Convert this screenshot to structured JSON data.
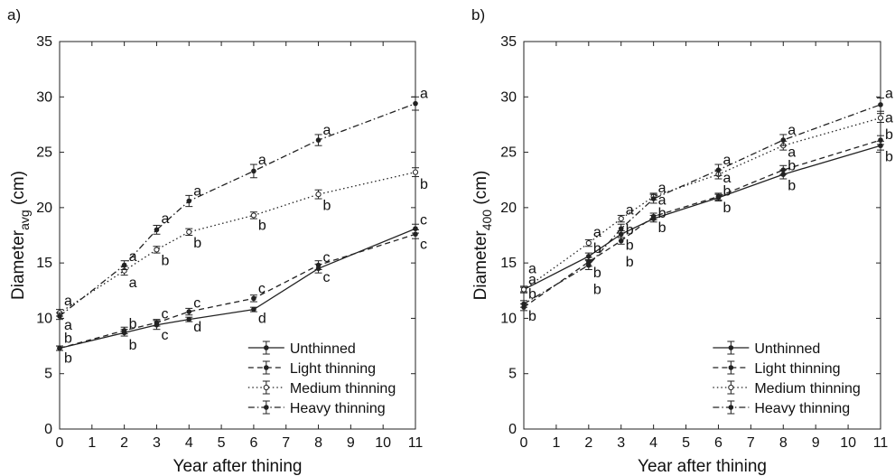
{
  "chart_data": [
    {
      "type": "line",
      "panel_label": "a)",
      "xlabel": "Year after thining",
      "ylabel_main": "Diameter",
      "ylabel_sub": "avg",
      "ylabel_unit": " (cm)",
      "x": [
        0,
        2,
        3,
        4,
        6,
        8,
        11
      ],
      "xlim": [
        0,
        11
      ],
      "ylim": [
        0,
        35
      ],
      "xticks": [
        0,
        1,
        2,
        3,
        4,
        5,
        6,
        7,
        8,
        9,
        10,
        11
      ],
      "yticks": [
        0,
        5,
        10,
        15,
        20,
        25,
        30,
        35
      ],
      "grid": false,
      "legend_position": "bottom-right",
      "series": [
        {
          "name": "Unthinned",
          "dash": "solid",
          "marker": "filled-dot",
          "values": [
            7.3,
            8.7,
            9.4,
            9.9,
            10.8,
            14.5,
            18.1
          ],
          "errors": [
            0.2,
            0.3,
            0.4,
            0.2,
            0.2,
            0.4,
            0.4
          ]
        },
        {
          "name": "Light thinning",
          "dash": "dashed",
          "marker": "filled-dot",
          "values": [
            7.3,
            8.9,
            9.6,
            10.6,
            11.8,
            14.8,
            17.6
          ],
          "errors": [
            0.2,
            0.3,
            0.3,
            0.3,
            0.3,
            0.4,
            0.4
          ]
        },
        {
          "name": "Medium thinning",
          "dash": "dotted",
          "marker": "open-circle",
          "values": [
            10.5,
            14.3,
            16.2,
            17.8,
            19.3,
            21.2,
            23.2
          ],
          "errors": [
            0.3,
            0.4,
            0.3,
            0.3,
            0.3,
            0.4,
            0.4
          ]
        },
        {
          "name": "Heavy thinning",
          "dash": "dash-dot",
          "marker": "filled-dot",
          "values": [
            10.2,
            14.8,
            18.0,
            20.6,
            23.3,
            26.1,
            29.4
          ],
          "errors": [
            0.3,
            0.4,
            0.4,
            0.5,
            0.6,
            0.5,
            0.6
          ]
        }
      ],
      "annotations": [
        {
          "x": 0,
          "y": 11.6,
          "text": "a"
        },
        {
          "x": 0,
          "y": 9.4,
          "text": "a"
        },
        {
          "x": 0,
          "y": 8.2,
          "text": "b"
        },
        {
          "x": 0,
          "y": 6.4,
          "text": "b"
        },
        {
          "x": 2,
          "y": 15.6,
          "text": "a"
        },
        {
          "x": 2,
          "y": 13.2,
          "text": "a"
        },
        {
          "x": 2,
          "y": 9.5,
          "text": "b"
        },
        {
          "x": 2,
          "y": 7.6,
          "text": "b"
        },
        {
          "x": 3,
          "y": 19.0,
          "text": "a"
        },
        {
          "x": 3,
          "y": 15.2,
          "text": "b"
        },
        {
          "x": 3,
          "y": 10.4,
          "text": "c"
        },
        {
          "x": 3,
          "y": 8.5,
          "text": "c"
        },
        {
          "x": 4,
          "y": 21.5,
          "text": "a"
        },
        {
          "x": 4,
          "y": 16.8,
          "text": "b"
        },
        {
          "x": 4,
          "y": 11.4,
          "text": "c"
        },
        {
          "x": 4,
          "y": 9.2,
          "text": "d"
        },
        {
          "x": 6,
          "y": 24.3,
          "text": "a"
        },
        {
          "x": 6,
          "y": 18.4,
          "text": "b"
        },
        {
          "x": 6,
          "y": 12.7,
          "text": "c"
        },
        {
          "x": 6,
          "y": 10.0,
          "text": "d"
        },
        {
          "x": 8,
          "y": 27.0,
          "text": "a"
        },
        {
          "x": 8,
          "y": 20.2,
          "text": "b"
        },
        {
          "x": 8,
          "y": 15.5,
          "text": "c"
        },
        {
          "x": 8,
          "y": 13.7,
          "text": "c"
        },
        {
          "x": 11,
          "y": 30.3,
          "text": "a"
        },
        {
          "x": 11,
          "y": 22.1,
          "text": "b"
        },
        {
          "x": 11,
          "y": 18.9,
          "text": "c"
        },
        {
          "x": 11,
          "y": 16.7,
          "text": "c"
        }
      ]
    },
    {
      "type": "line",
      "panel_label": "b)",
      "xlabel": "Year after thining",
      "ylabel_main": "Diameter",
      "ylabel_sub": "400",
      "ylabel_unit": " (cm)",
      "x": [
        0,
        2,
        3,
        4,
        6,
        8,
        11
      ],
      "xlim": [
        0,
        11
      ],
      "ylim": [
        0,
        35
      ],
      "xticks": [
        0,
        1,
        2,
        3,
        4,
        5,
        6,
        7,
        8,
        9,
        10,
        11
      ],
      "yticks": [
        0,
        5,
        10,
        15,
        20,
        25,
        30,
        35
      ],
      "grid": false,
      "legend_position": "bottom-right",
      "series": [
        {
          "name": "Unthinned",
          "dash": "solid",
          "marker": "filled-dot",
          "values": [
            12.6,
            15.6,
            17.6,
            19.0,
            20.9,
            23.0,
            25.6
          ],
          "errors": [
            0.2,
            0.3,
            0.3,
            0.3,
            0.3,
            0.4,
            0.4
          ]
        },
        {
          "name": "Light thinning",
          "dash": "dashed",
          "marker": "filled-dot",
          "values": [
            11.0,
            15.1,
            17.0,
            19.2,
            21.0,
            23.4,
            26.1
          ],
          "errors": [
            0.3,
            0.4,
            0.3,
            0.3,
            0.3,
            0.4,
            0.4
          ]
        },
        {
          "name": "Medium thinning",
          "dash": "dotted",
          "marker": "open-circle",
          "values": [
            12.6,
            16.8,
            19.0,
            21.0,
            23.0,
            25.6,
            28.1
          ],
          "errors": [
            0.3,
            0.3,
            0.3,
            0.3,
            0.4,
            0.4,
            0.4
          ]
        },
        {
          "name": "Heavy thinning",
          "dash": "dash-dot",
          "marker": "filled-dot",
          "values": [
            11.3,
            14.8,
            18.1,
            20.8,
            23.4,
            26.1,
            29.3
          ],
          "errors": [
            0.3,
            0.4,
            0.4,
            0.4,
            0.5,
            0.5,
            0.6
          ]
        }
      ],
      "annotations": [
        {
          "x": 0,
          "y": 14.5,
          "text": "a"
        },
        {
          "x": 0,
          "y": 13.5,
          "text": "a"
        },
        {
          "x": 0,
          "y": 12.2,
          "text": "b"
        },
        {
          "x": 0,
          "y": 10.2,
          "text": "b"
        },
        {
          "x": 2,
          "y": 17.8,
          "text": "a"
        },
        {
          "x": 2,
          "y": 16.3,
          "text": "b"
        },
        {
          "x": 2,
          "y": 14.1,
          "text": "b"
        },
        {
          "x": 2,
          "y": 12.6,
          "text": "b"
        },
        {
          "x": 3,
          "y": 19.8,
          "text": "a"
        },
        {
          "x": 3,
          "y": 18.0,
          "text": "b"
        },
        {
          "x": 3,
          "y": 16.6,
          "text": "b"
        },
        {
          "x": 3,
          "y": 15.1,
          "text": "b"
        },
        {
          "x": 4,
          "y": 21.8,
          "text": "a"
        },
        {
          "x": 4,
          "y": 20.7,
          "text": "a"
        },
        {
          "x": 4,
          "y": 19.5,
          "text": "b"
        },
        {
          "x": 4,
          "y": 18.2,
          "text": "b"
        },
        {
          "x": 6,
          "y": 24.3,
          "text": "a"
        },
        {
          "x": 6,
          "y": 22.7,
          "text": "a"
        },
        {
          "x": 6,
          "y": 21.5,
          "text": "b"
        },
        {
          "x": 6,
          "y": 20.0,
          "text": "b"
        },
        {
          "x": 8,
          "y": 27.0,
          "text": "a"
        },
        {
          "x": 8,
          "y": 25.0,
          "text": "a"
        },
        {
          "x": 8,
          "y": 23.8,
          "text": "b"
        },
        {
          "x": 8,
          "y": 22.0,
          "text": "b"
        },
        {
          "x": 11,
          "y": 30.3,
          "text": "a"
        },
        {
          "x": 11,
          "y": 28.1,
          "text": "a"
        },
        {
          "x": 11,
          "y": 26.6,
          "text": "b"
        },
        {
          "x": 11,
          "y": 24.6,
          "text": "b"
        }
      ]
    }
  ]
}
